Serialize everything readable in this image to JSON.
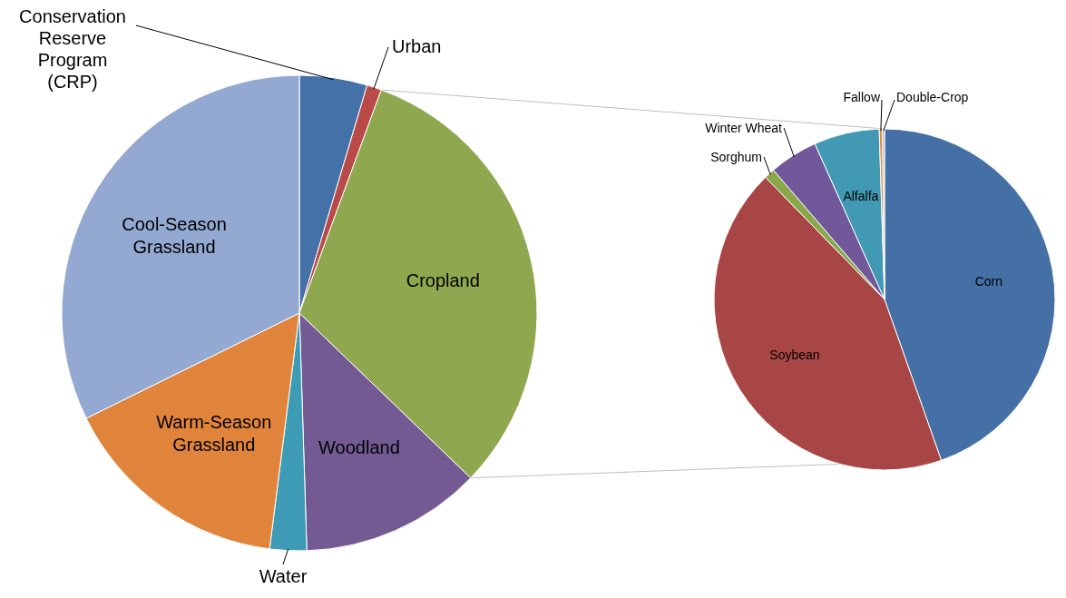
{
  "chart_data": [
    {
      "type": "pie",
      "categories": [
        "Conservation Reserve Program (CRP)",
        "Urban",
        "Cropland",
        "Woodland",
        "Water",
        "Warm-Season Grassland",
        "Cool-Season Grassland"
      ],
      "values": [
        4.6,
        1,
        31.6,
        12.3,
        2.5,
        15.7,
        32.3
      ],
      "colors": [
        "#4472a8",
        "#b94a48",
        "#8fa84f",
        "#735a93",
        "#3d9bb5",
        "#e0843c",
        "#94a9d2"
      ]
    },
    {
      "type": "pie",
      "categories": [
        "Corn",
        "Soybean",
        "Sorghum",
        "Winter Wheat",
        "Alfalfa",
        "Fallow",
        "Double-Crop"
      ],
      "values": [
        44.6,
        43.1,
        1,
        4.6,
        6.2,
        0.3,
        0.2
      ],
      "colors": [
        "#4470a5",
        "#a84645",
        "#8aa84a",
        "#71589a",
        "#4199b4",
        "#e38b3f",
        "#a0b0d0"
      ]
    }
  ]
}
